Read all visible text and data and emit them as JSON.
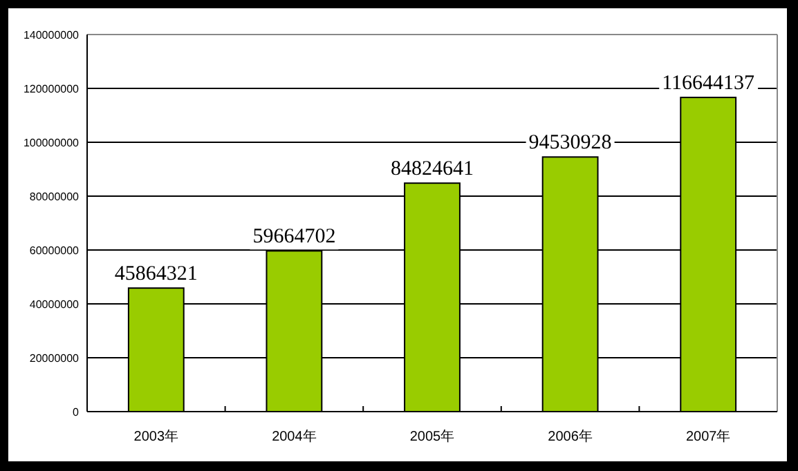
{
  "chart_data": {
    "type": "bar",
    "categories": [
      "2003年",
      "2004年",
      "2005年",
      "2006年",
      "2007年"
    ],
    "values": [
      45864321,
      59664702,
      84824641,
      94530928,
      116644137
    ],
    "color": "#99cc00",
    "ylim": [
      0,
      140000000
    ],
    "yticks": [
      0,
      20000000,
      40000000,
      60000000,
      80000000,
      100000000,
      120000000,
      140000000
    ],
    "grid": "y",
    "data_labels": true
  }
}
